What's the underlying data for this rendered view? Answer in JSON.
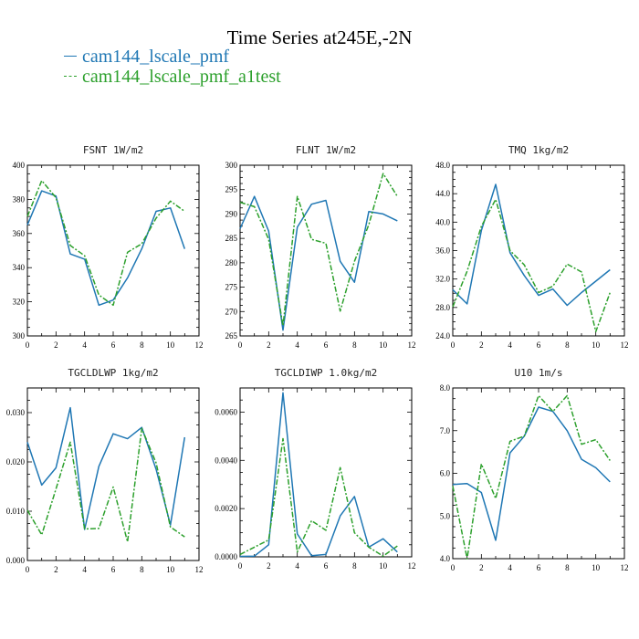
{
  "title": "Time Series at245E,-2N",
  "legend": [
    {
      "label": "cam144_lscale_pmf",
      "color": "#1f77b4",
      "style": "solid"
    },
    {
      "label": "cam144_lscale_pmf_a1test",
      "color": "#2ca02c",
      "style": "dashed"
    }
  ],
  "chart_data": [
    {
      "type": "line",
      "title": "FSNT   1W/m2",
      "x": [
        0,
        1,
        2,
        3,
        4,
        5,
        6,
        7,
        8,
        9,
        10,
        11
      ],
      "xlim": [
        0,
        12
      ],
      "ylim": [
        300,
        400
      ],
      "xticks": [
        "0",
        "2",
        "4",
        "6",
        "8",
        "10",
        "12"
      ],
      "yticks": [
        "300",
        "320",
        "340",
        "360",
        "380",
        "400"
      ],
      "series": [
        {
          "name": "cam144_lscale_pmf",
          "values": [
            365,
            385,
            382,
            348,
            345,
            318,
            321,
            334,
            351,
            373,
            375,
            351
          ]
        },
        {
          "name": "cam144_lscale_pmf_a1test",
          "values": [
            370,
            391,
            381,
            353,
            347,
            324,
            318,
            349,
            354,
            369,
            379,
            373
          ]
        }
      ]
    },
    {
      "type": "line",
      "title": "FLNT   1W/m2",
      "x": [
        0,
        1,
        2,
        3,
        4,
        5,
        6,
        7,
        8,
        9,
        10,
        11
      ],
      "xlim": [
        0,
        12
      ],
      "ylim": [
        265,
        300
      ],
      "xticks": [
        "0",
        "2",
        "4",
        "6",
        "8",
        "10",
        "12"
      ],
      "yticks": [
        "265",
        "270",
        "275",
        "280",
        "285",
        "290",
        "295",
        "300"
      ],
      "series": [
        {
          "name": "cam144_lscale_pmf",
          "values": [
            287,
            293.6,
            286.5,
            266.2,
            287.3,
            292,
            292.8,
            280.3,
            276,
            290.5,
            290,
            288.6
          ]
        },
        {
          "name": "cam144_lscale_pmf_a1test",
          "values": [
            292.4,
            291.5,
            284.8,
            267.1,
            293.6,
            284.8,
            284,
            270.1,
            280.3,
            287.8,
            298.3,
            293.6
          ]
        }
      ]
    },
    {
      "type": "line",
      "title": "TMQ   1kg/m2",
      "x": [
        0,
        1,
        2,
        3,
        4,
        5,
        6,
        7,
        8,
        9,
        10,
        11
      ],
      "xlim": [
        0,
        12
      ],
      "ylim": [
        24,
        48
      ],
      "xticks": [
        "0",
        "2",
        "4",
        "6",
        "8",
        "10",
        "12"
      ],
      "yticks": [
        "24.0",
        "28.0",
        "32.0",
        "36.0",
        "40.0",
        "44.0",
        "48.0"
      ],
      "series": [
        {
          "name": "cam144_lscale_pmf",
          "values": [
            30.5,
            28.5,
            38.8,
            45.3,
            35.7,
            32.5,
            29.7,
            30.6,
            28.3,
            30.1,
            31.7,
            33.3
          ]
        },
        {
          "name": "cam144_lscale_pmf_a1test",
          "values": [
            28.1,
            33.1,
            39.4,
            43.2,
            36.0,
            34.0,
            30.1,
            31.0,
            34.1,
            33.0,
            24.6,
            30.1
          ]
        }
      ]
    },
    {
      "type": "line",
      "title": "TGCLDLWP   1kg/m2",
      "x": [
        0,
        1,
        2,
        3,
        4,
        5,
        6,
        7,
        8,
        9,
        10,
        11
      ],
      "xlim": [
        0,
        12
      ],
      "ylim": [
        0,
        0.035
      ],
      "xticks": [
        "0",
        "2",
        "4",
        "6",
        "8",
        "10",
        "12"
      ],
      "yticks": [
        "0.000",
        "0.010",
        "0.020",
        "0.030"
      ],
      "series": [
        {
          "name": "cam144_lscale_pmf",
          "values": [
            0.024,
            0.0153,
            0.0188,
            0.031,
            0.0063,
            0.0191,
            0.0257,
            0.0247,
            0.027,
            0.0185,
            0.0072,
            0.025
          ]
        },
        {
          "name": "cam144_lscale_pmf_a1test",
          "values": [
            0.0102,
            0.0052,
            0.0145,
            0.024,
            0.0064,
            0.0065,
            0.0149,
            0.0038,
            0.0268,
            0.0198,
            0.0068,
            0.0048
          ]
        }
      ]
    },
    {
      "type": "line",
      "title": "TGCLDIWP   1.0kg/m2",
      "x": [
        0,
        1,
        2,
        3,
        4,
        5,
        6,
        7,
        8,
        9,
        10,
        11
      ],
      "xlim": [
        0,
        12
      ],
      "ylim": [
        0,
        0.007
      ],
      "xticks": [
        "0",
        "2",
        "4",
        "6",
        "8",
        "10",
        "12"
      ],
      "yticks": [
        "0.0000",
        "0.0020",
        "0.0040",
        "0.0060"
      ],
      "series": [
        {
          "name": "cam144_lscale_pmf",
          "values": [
            2e-05,
            3e-05,
            0.0005,
            0.0068,
            0.00095,
            5e-05,
            0.0001,
            0.0017,
            0.0025,
            0.0004,
            0.00075,
            0.0002
          ]
        },
        {
          "name": "cam144_lscale_pmf_a1test",
          "values": [
            0.0001,
            0.0004,
            0.0007,
            0.0049,
            0.0002,
            0.0015,
            0.0011,
            0.0037,
            0.001,
            0.0004,
            3e-05,
            0.00045
          ]
        }
      ]
    },
    {
      "type": "line",
      "title": "U10   1m/s",
      "x": [
        0,
        1,
        2,
        3,
        4,
        5,
        6,
        7,
        8,
        9,
        10,
        11
      ],
      "xlim": [
        0,
        12
      ],
      "ylim": [
        4,
        8
      ],
      "xticks": [
        "0",
        "2",
        "4",
        "6",
        "8",
        "10",
        "12"
      ],
      "yticks": [
        "4.0",
        "5.0",
        "6.0",
        "7.0",
        "8.0"
      ],
      "series": [
        {
          "name": "cam144_lscale_pmf",
          "values": [
            5.74,
            5.76,
            5.55,
            4.43,
            6.48,
            6.87,
            7.55,
            7.45,
            7.0,
            6.33,
            6.13,
            5.8
          ]
        },
        {
          "name": "cam144_lscale_pmf_a1test",
          "values": [
            5.7,
            4.0,
            6.22,
            5.41,
            6.75,
            6.87,
            7.82,
            7.45,
            7.82,
            6.68,
            6.79,
            6.3
          ]
        }
      ]
    }
  ]
}
